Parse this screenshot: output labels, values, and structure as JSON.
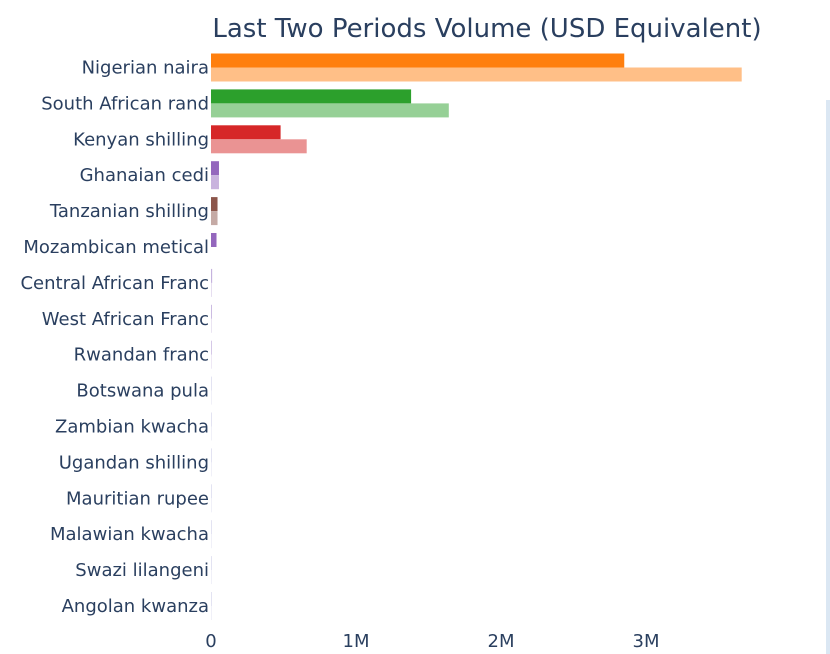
{
  "chart_data": {
    "type": "bar",
    "orientation": "horizontal",
    "title": "Last Two Periods Volume (USD Equivalent)",
    "xlabel": "",
    "ylabel": "",
    "xlim": [
      0,
      3800000
    ],
    "x_ticks": [
      0,
      1000000,
      2000000,
      3000000
    ],
    "x_tick_labels": [
      "0",
      "1M",
      "2M",
      "3M"
    ],
    "grid": false,
    "legend": "none",
    "categories": [
      "Nigerian naira",
      "South African rand",
      "Kenyan shilling",
      "Ghanaian cedi",
      "Tanzanian shilling",
      "Mozambican metical",
      "Central African Franc",
      "West African Franc",
      "Rwandan franc",
      "Botswana pula",
      "Zambian kwacha",
      "Ugandan shilling",
      "Mauritian rupee",
      "Malawian kwacha",
      "Swazi lilangeni",
      "Angolan kwanza"
    ],
    "series": [
      {
        "values": [
          2850000,
          1380000,
          480000,
          55000,
          45000,
          38000,
          8000,
          6000,
          5000,
          3000,
          2000,
          2000,
          1500,
          1000,
          800,
          500
        ]
      },
      {
        "values": [
          3660000,
          1640000,
          660000,
          55000,
          45000,
          0,
          6000,
          5000,
          4000,
          2500,
          1500,
          1500,
          1000,
          800,
          500,
          300
        ]
      }
    ],
    "colors": {
      "dark": [
        "#ff7f0e",
        "#2ca02c",
        "#d62728",
        "#9467bd",
        "#8c564b",
        "#9467bd",
        "#c5b3de",
        "#c5b3de",
        "#c5b3de",
        "#d0d0e8",
        "#d0d0e8",
        "#d0d0e8",
        "#d0d0e8",
        "#d0d0e8",
        "#d0d0e8",
        "#d0d0e8"
      ],
      "light": [
        "#ffbf87",
        "#96d096",
        "#ea9393",
        "#c9b3de",
        "#c5aaa5",
        "#c9b3de",
        "#e2d9ee",
        "#e2d9ee",
        "#e2d9ee",
        "#e6e6f2",
        "#e6e6f2",
        "#e6e6f2",
        "#e6e6f2",
        "#e6e6f2",
        "#e6e6f2",
        "#e6e6f2"
      ],
      "text": "#2a3f5f"
    }
  }
}
